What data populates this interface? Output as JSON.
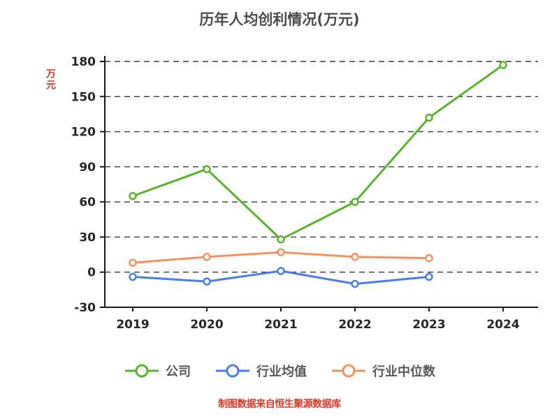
{
  "title": "历年人均创利情况(万元)",
  "y_axis": {
    "label": "万元"
  },
  "footer": {
    "text": "制图数据来自恒生聚源数据库"
  },
  "chart_data": {
    "type": "line",
    "title": "历年人均创利情况(万元)",
    "categories": [
      "2019",
      "2020",
      "2021",
      "2022",
      "2023",
      "2024"
    ],
    "series": [
      {
        "name": "公司",
        "color": "#57b52c",
        "values": [
          65,
          88,
          28,
          60,
          132,
          177
        ]
      },
      {
        "name": "行业均值",
        "color": "#4a7ef0",
        "values": [
          -4,
          -8,
          1,
          -10,
          -4,
          null
        ]
      },
      {
        "name": "行业中位数",
        "color": "#f8915f",
        "values": [
          8,
          13,
          17,
          13,
          12,
          null
        ]
      }
    ],
    "ylim": [
      -30,
      180
    ],
    "yticks": [
      -30,
      0,
      30,
      60,
      90,
      120,
      150,
      180
    ],
    "ylabel": "万元",
    "xlabel": "",
    "grid": "horizontal-dashed",
    "legend_position": "bottom",
    "marker": "open-circle"
  },
  "colors": {
    "title": "#4d4d4d",
    "axis": "#1a1a1a",
    "tick_label": "#262626",
    "grid": "#3a3a3a",
    "legend_label": "#595959",
    "footer": "#d93a2a",
    "y_axis_label": "#e03a2a",
    "background": "#ffffff"
  }
}
